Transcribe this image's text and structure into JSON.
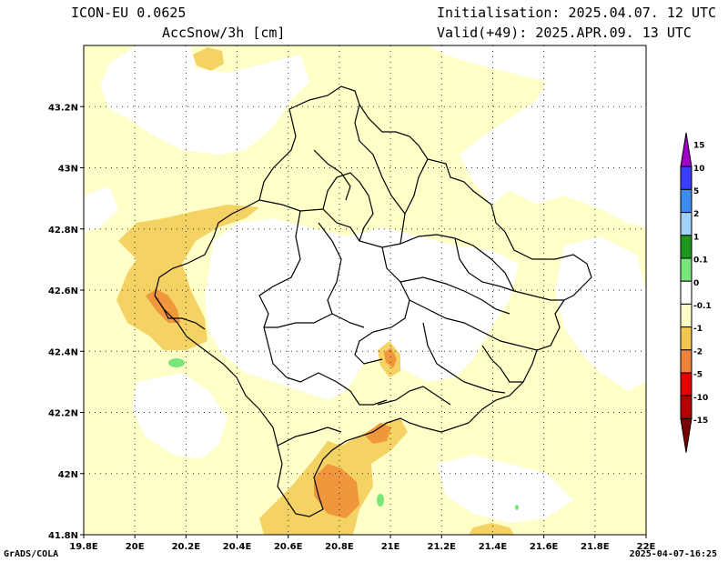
{
  "header": {
    "model": "ICON-EU 0.0625",
    "variable": "AccSnow/3h [cm]",
    "initialisation": "Initialisation: 2025.04.07. 12 UTC",
    "valid": "Valid(+49): 2025.APR.09. 13 UTC"
  },
  "footer": {
    "left": "GrADS/COLA",
    "right": "2025-04-07-16:25"
  },
  "axes": {
    "x_labels": [
      "19.8E",
      "20E",
      "20.2E",
      "20.4E",
      "20.6E",
      "20.8E",
      "21E",
      "21.2E",
      "21.4E",
      "21.6E",
      "21.8E",
      "22E"
    ],
    "y_labels": [
      "41.8N",
      "42N",
      "42.2N",
      "42.4N",
      "42.6N",
      "42.8N",
      "43N",
      "43.2N"
    ],
    "lon_range": [
      19.8,
      22.0
    ],
    "lat_range": [
      41.8,
      43.4
    ]
  },
  "colorbar": {
    "labels": [
      "15",
      "10",
      "5",
      "2",
      "1",
      "0.1",
      "0",
      "-0.1",
      "-1",
      "-2",
      "-5",
      "-10",
      "-15"
    ],
    "colors": [
      "#a000c8",
      "#3c3cff",
      "#3c8cf0",
      "#a0d2fa",
      "#1e961e",
      "#78e678",
      "#ffffff",
      "#ffffc8",
      "#f0c850",
      "#f0823c",
      "#e60000",
      "#b40000",
      "#780000"
    ]
  },
  "colors": {
    "light_yellow": "#ffffc8",
    "yellow": "#f5d264",
    "orange": "#f0963c",
    "green": "#78e678",
    "border": "#000000"
  }
}
